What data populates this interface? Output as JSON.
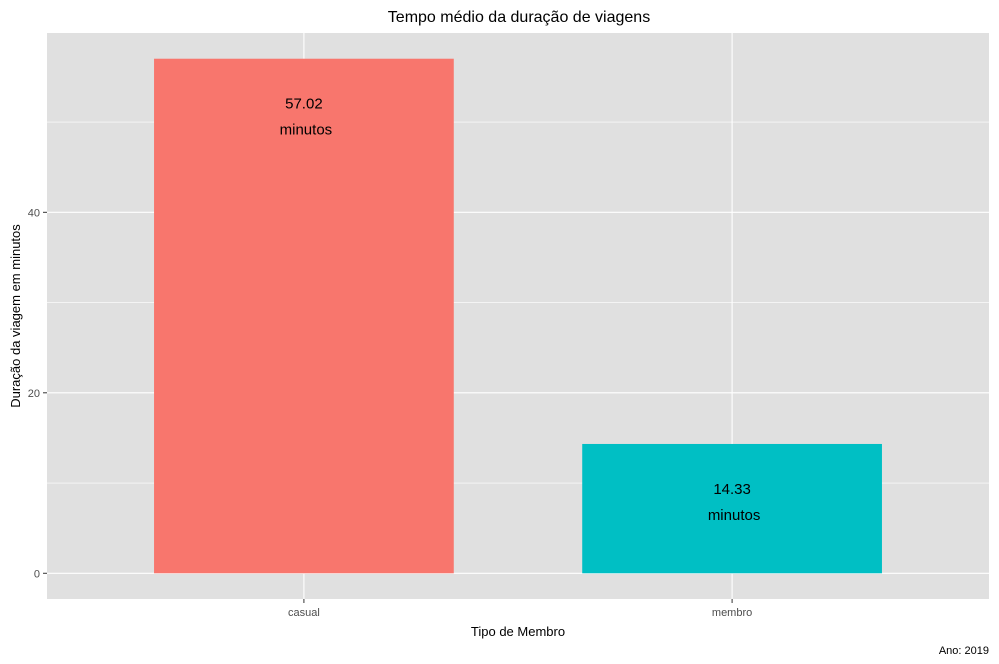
{
  "chart_data": {
    "type": "bar",
    "title": "Tempo médio da duração de viagens",
    "xlabel": "Tipo de Membro",
    "ylabel": "Duração da viagem em minutos",
    "caption": "Ano: 2019",
    "categories": [
      "casual",
      "membro"
    ],
    "values": [
      57.02,
      14.33
    ],
    "bar_labels": [
      {
        "value": "57.02",
        "unit": "minutos"
      },
      {
        "value": "14.33",
        "unit": "minutos"
      }
    ],
    "colors": [
      "#F8766D",
      "#00BFC4"
    ],
    "y_ticks": [
      0,
      20,
      40
    ],
    "y_tick_labels": [
      "0",
      "20",
      "40"
    ],
    "ylim": [
      -2.85,
      59.87
    ],
    "grid": true,
    "panel_background": "#E0E0E0",
    "gridline_color": "#FFFFFF",
    "legend": "none"
  }
}
